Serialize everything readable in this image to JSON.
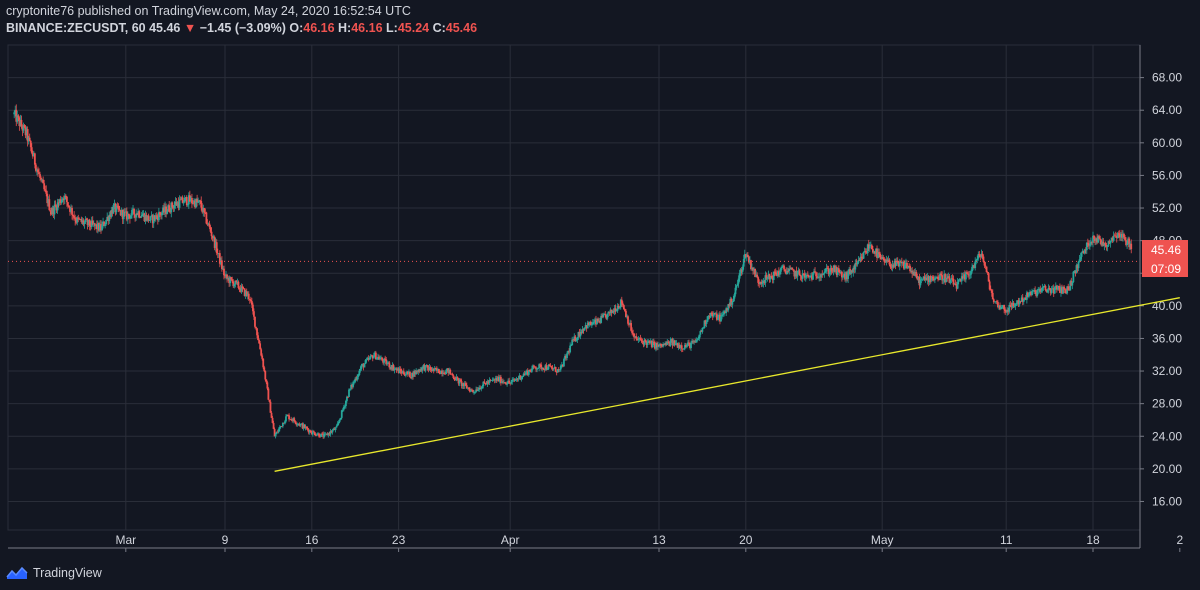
{
  "header": {
    "published_line": "cryptonite76 published on TradingView.com, May 24, 2020 16:52:54 UTC",
    "symbol": "BINANCE:ZECUSDT, 60",
    "last": "45.46",
    "change_arrow": "▼",
    "change": "−1.45 (−3.09%)",
    "open_label": "O:",
    "open": "46.16",
    "high_label": "H:",
    "high": "46.16",
    "low_label": "L:",
    "low": "45.24",
    "close_label": "C:",
    "close": "45.46"
  },
  "footer": {
    "brand": "TradingView",
    "logo_icon": "tradingview-logo-icon"
  },
  "colors": {
    "background": "#131722",
    "grid": "#2a2e39",
    "up": "#26a69a",
    "down": "#ef5350",
    "trendline": "#e8e82c",
    "price_label": "#ef5350"
  },
  "chart_data": {
    "type": "candlestick",
    "symbol": "BINANCE:ZECUSDT",
    "interval": "60",
    "y_ticks": [
      "68.00",
      "64.00",
      "60.00",
      "56.00",
      "52.00",
      "48.00",
      "44.00",
      "40.00",
      "36.00",
      "32.00",
      "28.00",
      "24.00",
      "20.00",
      "16.00"
    ],
    "ylim": [
      12.5,
      72
    ],
    "x_ticks": [
      {
        "label": "Mar",
        "date": "2020-03-01"
      },
      {
        "label": "9",
        "date": "2020-03-09"
      },
      {
        "label": "16",
        "date": "2020-03-16"
      },
      {
        "label": "23",
        "date": "2020-03-23"
      },
      {
        "label": "Apr",
        "date": "2020-04-01"
      },
      {
        "label": "13",
        "date": "2020-04-13"
      },
      {
        "label": "20",
        "date": "2020-04-20"
      },
      {
        "label": "May",
        "date": "2020-05-01"
      },
      {
        "label": "11",
        "date": "2020-05-11"
      },
      {
        "label": "18",
        "date": "2020-05-18"
      },
      {
        "label": "2",
        "date": "2020-05-25"
      }
    ],
    "last_price": "45.46",
    "countdown": "07:09",
    "price_path": [
      [
        "2020-02-21",
        63.5
      ],
      [
        "2020-02-22",
        61.0
      ],
      [
        "2020-02-23",
        56.0
      ],
      [
        "2020-02-24",
        51.5
      ],
      [
        "2020-02-25",
        53.5
      ],
      [
        "2020-02-26",
        50.5
      ],
      [
        "2020-02-27",
        50.0
      ],
      [
        "2020-02-28",
        49.5
      ],
      [
        "2020-02-29",
        52.0
      ],
      [
        "2020-03-01",
        51.0
      ],
      [
        "2020-03-02",
        51.5
      ],
      [
        "2020-03-03",
        50.5
      ],
      [
        "2020-03-04",
        51.5
      ],
      [
        "2020-03-05",
        52.5
      ],
      [
        "2020-03-06",
        53.0
      ],
      [
        "2020-03-07",
        52.5
      ],
      [
        "2020-03-08",
        48.5
      ],
      [
        "2020-03-09",
        43.5
      ],
      [
        "2020-03-10",
        42.5
      ],
      [
        "2020-03-11",
        41.0
      ],
      [
        "2020-03-12",
        33.5
      ],
      [
        "2020-03-13",
        24.0
      ],
      [
        "2020-03-14",
        26.5
      ],
      [
        "2020-03-15",
        25.5
      ],
      [
        "2020-03-16",
        24.5
      ],
      [
        "2020-03-17",
        24.0
      ],
      [
        "2020-03-18",
        25.0
      ],
      [
        "2020-03-19",
        29.5
      ],
      [
        "2020-03-20",
        32.5
      ],
      [
        "2020-03-21",
        34.0
      ],
      [
        "2020-03-22",
        33.0
      ],
      [
        "2020-03-23",
        32.0
      ],
      [
        "2020-03-24",
        31.5
      ],
      [
        "2020-03-25",
        32.5
      ],
      [
        "2020-03-26",
        32.0
      ],
      [
        "2020-03-27",
        32.0
      ],
      [
        "2020-03-28",
        30.5
      ],
      [
        "2020-03-29",
        29.5
      ],
      [
        "2020-03-30",
        30.5
      ],
      [
        "2020-03-31",
        31.0
      ],
      [
        "2020-04-01",
        30.5
      ],
      [
        "2020-04-02",
        31.5
      ],
      [
        "2020-04-03",
        32.5
      ],
      [
        "2020-04-04",
        32.5
      ],
      [
        "2020-04-05",
        32.0
      ],
      [
        "2020-04-06",
        35.5
      ],
      [
        "2020-04-07",
        37.5
      ],
      [
        "2020-04-08",
        38.0
      ],
      [
        "2020-04-09",
        39.0
      ],
      [
        "2020-04-10",
        40.5
      ],
      [
        "2020-04-11",
        36.0
      ],
      [
        "2020-04-12",
        35.5
      ],
      [
        "2020-04-13",
        35.0
      ],
      [
        "2020-04-14",
        35.5
      ],
      [
        "2020-04-15",
        35.0
      ],
      [
        "2020-04-16",
        35.5
      ],
      [
        "2020-04-17",
        39.0
      ],
      [
        "2020-04-18",
        38.5
      ],
      [
        "2020-04-19",
        41.0
      ],
      [
        "2020-04-20",
        46.5
      ],
      [
        "2020-04-21",
        43.0
      ],
      [
        "2020-04-22",
        43.5
      ],
      [
        "2020-04-23",
        44.5
      ],
      [
        "2020-04-24",
        44.0
      ],
      [
        "2020-04-25",
        43.5
      ],
      [
        "2020-04-26",
        44.0
      ],
      [
        "2020-04-27",
        44.5
      ],
      [
        "2020-04-28",
        43.5
      ],
      [
        "2020-04-29",
        45.0
      ],
      [
        "2020-04-30",
        47.5
      ],
      [
        "2020-05-01",
        45.5
      ],
      [
        "2020-05-02",
        45.0
      ],
      [
        "2020-05-03",
        45.0
      ],
      [
        "2020-05-04",
        43.0
      ],
      [
        "2020-05-05",
        43.5
      ],
      [
        "2020-05-06",
        43.5
      ],
      [
        "2020-05-07",
        42.5
      ],
      [
        "2020-05-08",
        44.0
      ],
      [
        "2020-05-09",
        46.5
      ],
      [
        "2020-05-10",
        40.5
      ],
      [
        "2020-05-11",
        39.5
      ],
      [
        "2020-05-12",
        40.5
      ],
      [
        "2020-05-13",
        41.5
      ],
      [
        "2020-05-14",
        42.0
      ],
      [
        "2020-05-15",
        42.0
      ],
      [
        "2020-05-16",
        42.0
      ],
      [
        "2020-05-17",
        46.0
      ],
      [
        "2020-05-18",
        48.5
      ],
      [
        "2020-05-19",
        47.5
      ],
      [
        "2020-05-20",
        49.0
      ],
      [
        "2020-05-21",
        47.5
      ],
      [
        "2020-05-22",
        45.5
      ],
      [
        "2020-05-23",
        47.5
      ],
      [
        "2020-05-24",
        46.5
      ]
    ],
    "trendline": {
      "from": [
        "2020-03-13",
        19.7
      ],
      "to": [
        "2020-05-25",
        41.0
      ]
    }
  }
}
